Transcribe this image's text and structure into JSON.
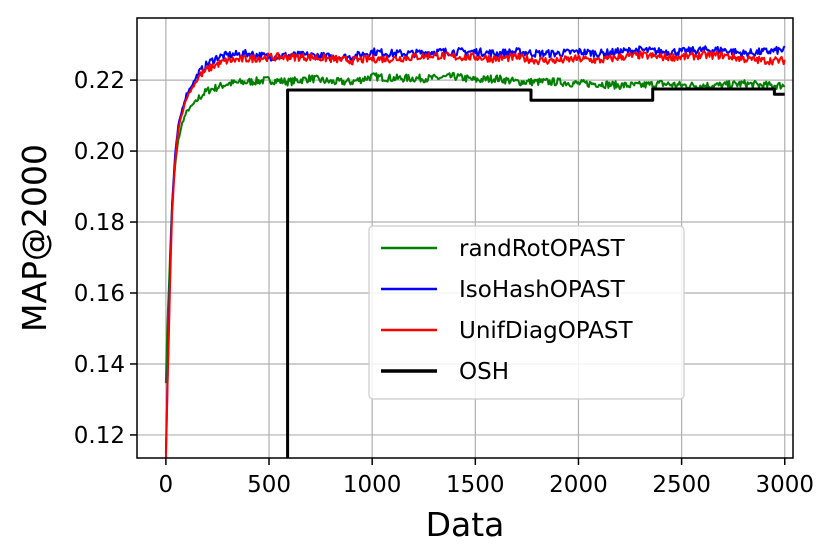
{
  "chart_data": {
    "type": "line",
    "title": "",
    "xlabel": "Data",
    "ylabel": "MAP@2000",
    "xlim": [
      -140,
      3040
    ],
    "ylim": [
      0.1135,
      0.2375
    ],
    "xticks": [
      0,
      500,
      1000,
      1500,
      2000,
      2500,
      3000
    ],
    "xtick_labels": [
      "0",
      "500",
      "1000",
      "1500",
      "2000",
      "2500",
      "3000"
    ],
    "yticks": [
      0.12,
      0.14,
      0.16,
      0.18,
      0.2,
      0.22
    ],
    "ytick_labels": [
      "0.12",
      "0.14",
      "0.16",
      "0.18",
      "0.20",
      "0.22"
    ],
    "grid": true,
    "legend_placement": "center-right",
    "series": [
      {
        "name": "randRotOPAST",
        "color": "#008000",
        "x": [
          0,
          10,
          20,
          30,
          45,
          60,
          80,
          100,
          130,
          160,
          200,
          250,
          300,
          400,
          500,
          600,
          700,
          800,
          900,
          1000,
          1100,
          1200,
          1300,
          1400,
          1500,
          1600,
          1700,
          1800,
          1900,
          2000,
          2100,
          2200,
          2300,
          2400,
          2500,
          2600,
          2700,
          2800,
          2900,
          3000
        ],
        "y": [
          0.135,
          0.155,
          0.17,
          0.185,
          0.196,
          0.203,
          0.208,
          0.211,
          0.213,
          0.215,
          0.217,
          0.218,
          0.219,
          0.2195,
          0.22,
          0.2195,
          0.2205,
          0.2195,
          0.2195,
          0.221,
          0.2205,
          0.2205,
          0.2205,
          0.221,
          0.22,
          0.2205,
          0.2195,
          0.2195,
          0.2195,
          0.219,
          0.219,
          0.2185,
          0.2185,
          0.219,
          0.2185,
          0.2185,
          0.2185,
          0.219,
          0.2185,
          0.2185
        ]
      },
      {
        "name": "IsoHashOPAST",
        "color": "#0000ff",
        "x": [
          0,
          10,
          20,
          30,
          45,
          60,
          80,
          100,
          130,
          160,
          200,
          250,
          300,
          400,
          500,
          600,
          700,
          800,
          900,
          1000,
          1100,
          1200,
          1300,
          1400,
          1500,
          1600,
          1700,
          1800,
          1900,
          2000,
          2100,
          2200,
          2300,
          2400,
          2500,
          2600,
          2700,
          2800,
          2900,
          3000
        ],
        "y": [
          0.115,
          0.14,
          0.165,
          0.185,
          0.199,
          0.207,
          0.212,
          0.216,
          0.219,
          0.222,
          0.2245,
          0.2265,
          0.227,
          0.2275,
          0.2265,
          0.227,
          0.227,
          0.2265,
          0.2265,
          0.228,
          0.2275,
          0.2275,
          0.228,
          0.228,
          0.228,
          0.2275,
          0.228,
          0.2275,
          0.2275,
          0.228,
          0.2275,
          0.228,
          0.2285,
          0.228,
          0.228,
          0.2285,
          0.2285,
          0.2275,
          0.228,
          0.2285
        ]
      },
      {
        "name": "UnifDiagOPAST",
        "color": "#ff0000",
        "x": [
          0,
          10,
          20,
          30,
          45,
          60,
          80,
          100,
          130,
          160,
          200,
          250,
          300,
          400,
          500,
          600,
          700,
          800,
          900,
          1000,
          1100,
          1200,
          1300,
          1400,
          1500,
          1600,
          1700,
          1800,
          1900,
          2000,
          2100,
          2200,
          2300,
          2400,
          2500,
          2600,
          2700,
          2800,
          2900,
          3000
        ],
        "y": [
          0.113,
          0.138,
          0.162,
          0.182,
          0.197,
          0.206,
          0.211,
          0.215,
          0.218,
          0.221,
          0.223,
          0.2245,
          0.2255,
          0.226,
          0.2265,
          0.2265,
          0.2265,
          0.226,
          0.2255,
          0.226,
          0.226,
          0.2265,
          0.227,
          0.2265,
          0.2265,
          0.226,
          0.2265,
          0.2255,
          0.2255,
          0.226,
          0.2255,
          0.2265,
          0.227,
          0.2265,
          0.2265,
          0.227,
          0.227,
          0.226,
          0.2255,
          0.2255
        ]
      },
      {
        "name": "OSH",
        "color": "#000000",
        "step": true,
        "x": [
          590,
          590,
          1770,
          1770,
          2360,
          2360,
          2950,
          2950,
          3000
        ],
        "y": [
          0.1135,
          0.2172,
          0.2172,
          0.2143,
          0.2143,
          0.2175,
          0.2175,
          0.216,
          0.216
        ]
      }
    ]
  }
}
